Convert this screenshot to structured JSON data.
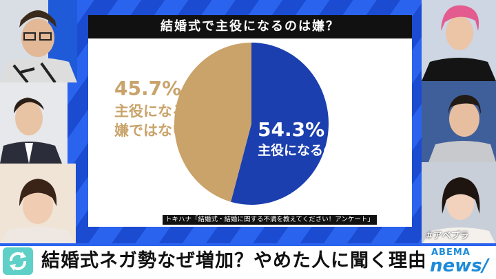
{
  "panel": {
    "title": "結婚式で主役になるのは嫌？",
    "source": "トキハナ「結婚式・結婚に関する不満を教えてください！アンケート」"
  },
  "chart_data": {
    "type": "pie",
    "title": "結婚式で主役になるのは嫌？",
    "series": [
      {
        "name": "主役になるのは嫌",
        "percent_label": "54.3%",
        "value": 54.3,
        "color": "#1b3fae"
      },
      {
        "name": "主役になるのは嫌ではない",
        "percent_label": "45.7%",
        "value": 45.7,
        "color": "#c9a36a"
      }
    ],
    "labels": {
      "left_line1": "主役になるのは",
      "left_line2": "嫌ではない"
    }
  },
  "overlay": {
    "hashtag": "#アベプラ"
  },
  "ticker": {
    "text": "結婚式ネガ勢なぜ増加？やめた人に聞く理由"
  },
  "logo": {
    "top": "ABEMA",
    "main": "news/"
  },
  "colors": {
    "accent": "#1b4fd6",
    "ticker_icon": "#5fd0c7",
    "logo": "#1e8bd9"
  }
}
